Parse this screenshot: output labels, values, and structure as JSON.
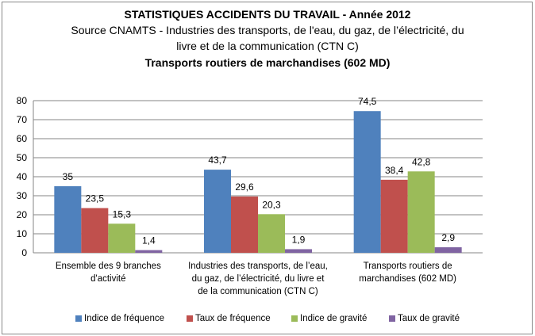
{
  "chart_data": {
    "type": "bar",
    "title": "STATISTIQUES ACCIDENTS DU TRAVAIL - Année 2012",
    "subtitle_lines": [
      "Source CNAMTS -   Industries des transports, de l'eau, du gaz, de l’électricité, du",
      "livre et de la communication (CTN C)"
    ],
    "title2": "Transports routiers de marchandises (602 MD)",
    "categories": [
      [
        "Ensemble des 9 branches",
        "d'activité"
      ],
      [
        "Industries des transports,  de l’eau,",
        "du gaz, de l’électricité, du livre et",
        "de la communication  (CTN C)"
      ],
      [
        "Transports routiers de",
        "marchandises (602 MD)"
      ]
    ],
    "series": [
      {
        "name": "Indice de fréquence",
        "color": "#4f81bd",
        "values": [
          35,
          43.7,
          74.5
        ],
        "labels": [
          "35",
          "43,7",
          "74,5"
        ]
      },
      {
        "name": "Taux de fréquence",
        "color": "#c0504d",
        "values": [
          23.5,
          29.6,
          38.4
        ],
        "labels": [
          "23,5",
          "29,6",
          "38,4"
        ]
      },
      {
        "name": "Indice de gravité",
        "color": "#9bbb59",
        "values": [
          15.3,
          20.3,
          42.8
        ],
        "labels": [
          "15,3",
          "20,3",
          "42,8"
        ]
      },
      {
        "name": "Taux de gravité",
        "color": "#8064a2",
        "values": [
          1.4,
          1.9,
          2.9
        ],
        "labels": [
          "1,4",
          "1,9",
          "2,9"
        ]
      }
    ],
    "ylim": [
      0,
      80
    ],
    "yticks": [
      0,
      10,
      20,
      30,
      40,
      50,
      60,
      70,
      80
    ],
    "grid": true,
    "legend_position": "bottom"
  }
}
